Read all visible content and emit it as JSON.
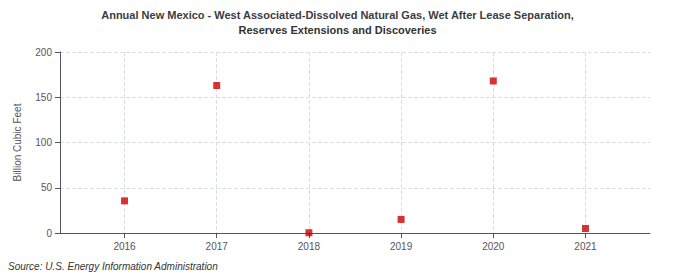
{
  "chart_data": {
    "type": "scatter",
    "title": "Annual New Mexico - West Associated-Dissolved Natural Gas, Wet After Lease Separation,",
    "subtitle": "Reserves Extensions and Discoveries",
    "ylabel": "Billion Cubic Feet",
    "annotation": "Source: U.S. Energy Information Administration",
    "x": [
      2016,
      2017,
      2018,
      2019,
      2020,
      2021
    ],
    "values": [
      35.5,
      163.0,
      0.3,
      15.0,
      168.0,
      5.0
    ],
    "xlim": [
      2015.3,
      2021.7
    ],
    "xticks": [
      2016,
      2017,
      2018,
      2019,
      2020,
      2021
    ],
    "ylim": [
      0,
      200
    ],
    "yticks": [
      0,
      50,
      100,
      150,
      200
    ],
    "color": "#cc0000",
    "marker": "square",
    "grid": true
  }
}
